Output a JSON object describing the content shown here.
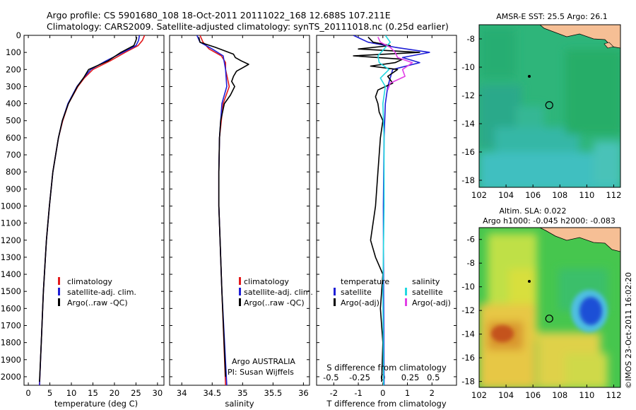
{
  "header": {
    "line1": "Argo profile: CS 5901680_108 18-Oct-2011 20111022_168 12.688S 107.211E",
    "line2": "Climatology: CARS2009. Satellite-adjusted climatology: synTS_20111018.nc (0.25d earlier)"
  },
  "colors": {
    "climatology": "#e31a1c",
    "satellite": "#1f1fd6",
    "argo": "#000000",
    "sal_satellite": "#22d8e0",
    "sal_argo": "#e23fe6",
    "land": "#f6bf95",
    "ocean_green": "#2bb56b"
  },
  "chart_data": [
    {
      "type": "line",
      "name": "temperature-profile",
      "xlabel": "temperature (deg C)",
      "ylim": [
        0,
        2050
      ],
      "xlim": [
        -1,
        31.5
      ],
      "y_reversed": true,
      "xticks": [
        0,
        5,
        10,
        15,
        20,
        25,
        30
      ],
      "yticks": [
        0,
        100,
        200,
        300,
        400,
        500,
        600,
        700,
        800,
        900,
        1000,
        1100,
        1200,
        1300,
        1400,
        1500,
        1600,
        1700,
        1800,
        1900,
        2000
      ],
      "legend": [
        "climatology",
        "satellite-adj. clim.",
        "Argo(..raw -QC)"
      ],
      "series": [
        {
          "name": "climatology",
          "color": "#e31a1c",
          "depth": [
            0,
            30,
            60,
            100,
            150,
            200,
            250,
            300,
            400,
            500,
            600,
            800,
            1000,
            1200,
            1500,
            1800,
            2050
          ],
          "values": [
            27.0,
            26.5,
            25.5,
            22.5,
            19.0,
            15.0,
            13.0,
            11.5,
            9.3,
            8.0,
            7.0,
            5.7,
            4.9,
            4.2,
            3.5,
            3.0,
            2.6
          ]
        },
        {
          "name": "satellite-adj. clim.",
          "color": "#1f1fd6",
          "depth": [
            0,
            30,
            60,
            100,
            150,
            200,
            250,
            300,
            400,
            500,
            600,
            800,
            1000,
            1200,
            1500,
            1800,
            2050
          ],
          "values": [
            25.8,
            25.6,
            25.0,
            22.0,
            18.0,
            14.5,
            12.8,
            11.3,
            9.2,
            7.9,
            7.0,
            5.7,
            4.9,
            4.2,
            3.5,
            3.0,
            2.6
          ]
        },
        {
          "name": "Argo(..raw -QC)",
          "color": "#000000",
          "depth": [
            10,
            30,
            60,
            100,
            150,
            200,
            250,
            300,
            400,
            500,
            600,
            800,
            1000,
            1200,
            1500,
            1800,
            2030
          ],
          "values": [
            25.2,
            25.0,
            24.5,
            21.5,
            18.5,
            14.0,
            12.8,
            11.4,
            9.3,
            7.9,
            7.0,
            5.7,
            4.9,
            4.2,
            3.5,
            3.0,
            2.6
          ]
        }
      ]
    },
    {
      "type": "line",
      "name": "salinity-profile",
      "xlabel": "salinity",
      "ylim": [
        0,
        2050
      ],
      "xlim": [
        33.8,
        36.1
      ],
      "y_reversed": true,
      "xticks": [
        34,
        34.5,
        35,
        35.5,
        36
      ],
      "legend": [
        "climatology",
        "satellite-adj. clim.",
        "Argo(..raw -QC)"
      ],
      "annotation": [
        "Argo AUSTRALIA",
        "PI: Susan Wijffels"
      ],
      "series": [
        {
          "name": "climatology",
          "color": "#e31a1c",
          "depth": [
            0,
            40,
            80,
            120,
            160,
            200,
            300,
            400,
            600,
            800,
            1000,
            1500,
            2050
          ],
          "values": [
            34.3,
            34.35,
            34.45,
            34.65,
            34.72,
            34.72,
            34.78,
            34.68,
            34.62,
            34.61,
            34.61,
            34.66,
            34.72
          ]
        },
        {
          "name": "satellite-adj. clim.",
          "color": "#1f1fd6",
          "depth": [
            0,
            40,
            80,
            120,
            160,
            200,
            300,
            400,
            600,
            800,
            1000,
            1500,
            2050
          ],
          "values": [
            34.25,
            34.3,
            34.5,
            34.68,
            34.7,
            34.72,
            34.74,
            34.66,
            34.62,
            34.61,
            34.61,
            34.66,
            34.74
          ]
        },
        {
          "name": "Argo(..raw -QC)",
          "color": "#000000",
          "depth": [
            10,
            40,
            70,
            90,
            110,
            130,
            150,
            170,
            190,
            210,
            240,
            270,
            300,
            350,
            400,
            500,
            600,
            800,
            1000,
            1500,
            2000
          ],
          "values": [
            34.28,
            34.3,
            34.55,
            34.7,
            34.85,
            34.88,
            34.98,
            35.1,
            35.0,
            34.9,
            34.85,
            34.82,
            34.87,
            34.8,
            34.7,
            34.64,
            34.62,
            34.61,
            34.61,
            34.66,
            34.72
          ]
        }
      ]
    },
    {
      "type": "line",
      "name": "difference-profile",
      "xlabel": "T difference from climatology",
      "x2label": "S difference from climatology",
      "ylim": [
        0,
        2050
      ],
      "xlim": [
        -2.7,
        3.0
      ],
      "y_reversed": true,
      "xticks": [
        -2,
        -1,
        0,
        1,
        2
      ],
      "x2ticks": [
        -0.5,
        -0.25,
        0,
        0.25,
        0.5
      ],
      "legend_headers": [
        "temperature",
        "salinity"
      ],
      "legend": [
        "satellite",
        "Argo(-adj)",
        "satellite",
        "Argo(-adj)"
      ],
      "series": [
        {
          "name": "temperature satellite",
          "color": "#1f1fd6",
          "depth": [
            0,
            40,
            70,
            100,
            130,
            160,
            200,
            250,
            300,
            400,
            600,
            1000,
            1500,
            2050
          ],
          "values": [
            -1.2,
            -0.6,
            0.5,
            1.9,
            0.8,
            1.5,
            0.4,
            0.3,
            0.2,
            0.1,
            0.05,
            0.02,
            0.03,
            0.05
          ]
        },
        {
          "name": "temperature Argo(-adj)",
          "color": "#000000",
          "depth": [
            10,
            40,
            60,
            80,
            100,
            120,
            140,
            160,
            180,
            200,
            240,
            280,
            320,
            360,
            400,
            450,
            500,
            600,
            800,
            1000,
            1200,
            1300,
            1400,
            1600,
            1800,
            2030
          ],
          "values": [
            -0.6,
            -0.4,
            0.3,
            -1.0,
            1.5,
            -1.2,
            0.8,
            0.5,
            -0.5,
            0.6,
            0.2,
            0.4,
            -0.2,
            -0.3,
            -0.2,
            -0.15,
            0.0,
            -0.1,
            -0.2,
            -0.3,
            -0.5,
            -0.3,
            0.0,
            -0.1,
            0.0,
            -0.05
          ]
        },
        {
          "name": "salinity satellite",
          "color": "#22d8e0",
          "depth": [
            0,
            40,
            80,
            120,
            160,
            200,
            250,
            300,
            400,
            600,
            1000,
            1500,
            2050
          ],
          "values": [
            0.1,
            0.3,
            0.05,
            -0.2,
            -0.15,
            0.25,
            -0.1,
            0.1,
            0.0,
            0.05,
            0.05,
            0.0,
            0.03
          ]
        },
        {
          "name": "salinity Argo(-adj)",
          "color": "#e23fe6",
          "depth": [
            10,
            40,
            70,
            100,
            130,
            160,
            200,
            240,
            280,
            320
          ],
          "values": [
            -0.2,
            -0.1,
            0.3,
            0.5,
            0.6,
            1.2,
            0.8,
            0.9,
            0.3,
            0.2
          ]
        }
      ]
    },
    {
      "type": "heatmap",
      "name": "sst-map",
      "title": "AMSR-E SST: 25.5 Argo: 26.1",
      "xlim": [
        102,
        112.5
      ],
      "ylim": [
        -18.5,
        -7
      ],
      "xticks": [
        102,
        104,
        106,
        108,
        110,
        112
      ],
      "yticks": [
        -8,
        -10,
        -12,
        -14,
        -16,
        -18
      ],
      "argo_position": {
        "lon": 107.211,
        "lat": -12.688
      }
    },
    {
      "type": "heatmap",
      "name": "sla-map",
      "title": "Altim. SLA: 0.022",
      "subtitle": "Argo h1000: -0.045 h2000: -0.083",
      "xlim": [
        102,
        112.5
      ],
      "ylim": [
        -18.5,
        -5
      ],
      "xticks": [
        102,
        104,
        106,
        108,
        110,
        112
      ],
      "yticks": [
        -6,
        -8,
        -10,
        -12,
        -14,
        -16,
        -18
      ],
      "argo_position": {
        "lon": 107.211,
        "lat": -12.688
      }
    }
  ],
  "credit": "©IMOS 23-Oct-2011 16:02:20"
}
